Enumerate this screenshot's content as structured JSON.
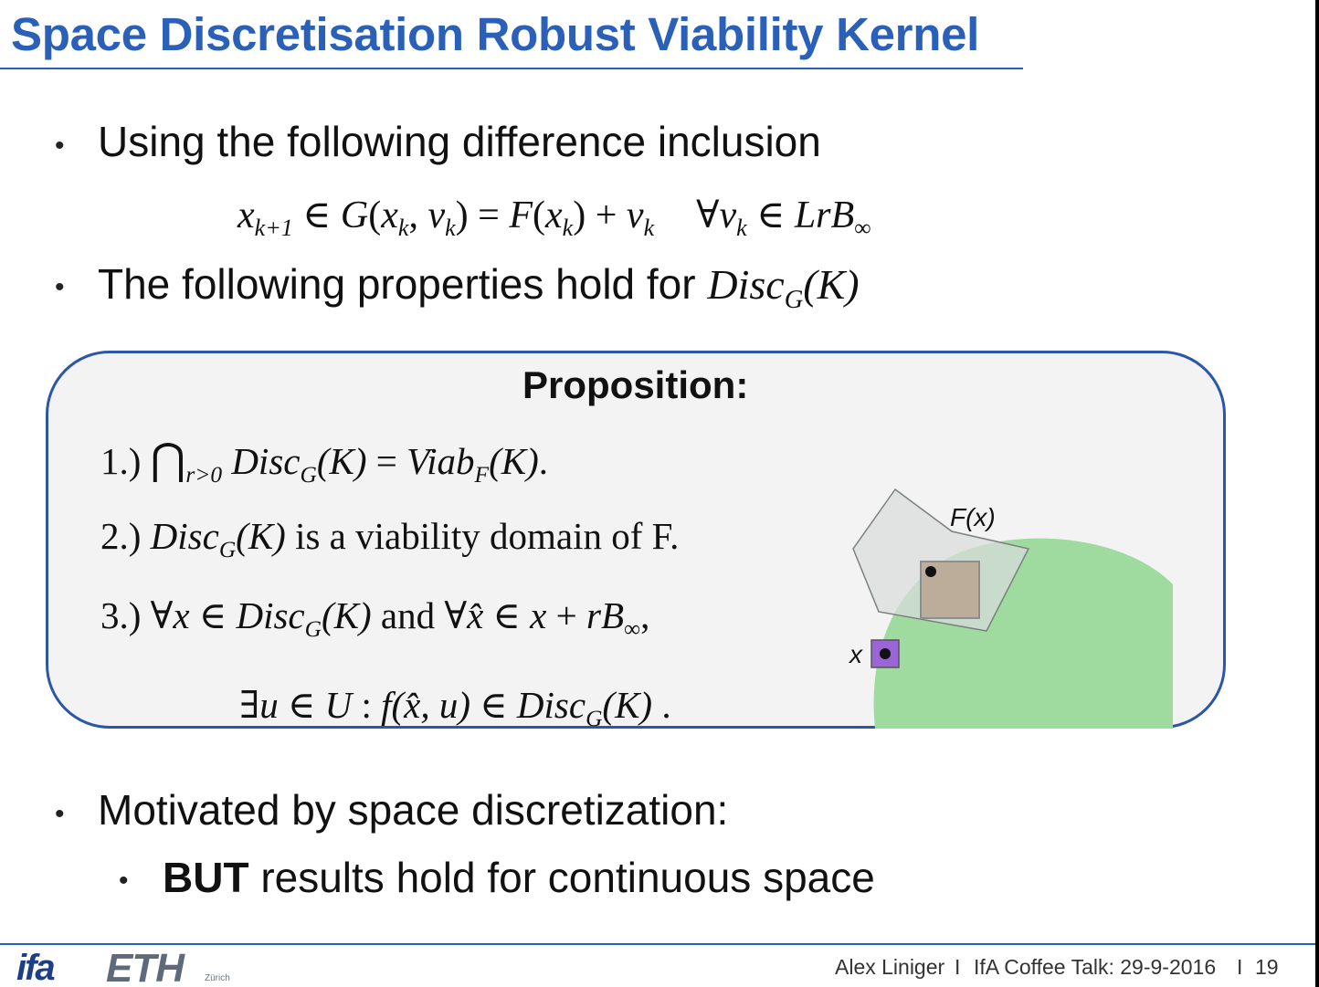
{
  "slide": {
    "title": "Space Discretisation Robust Viability Kernel",
    "bullets": {
      "b1": "Using the following difference inclusion",
      "b2_prefix": "The following properties hold for ",
      "b2_math": "Disc",
      "b2_sub": "G",
      "b2_arg": "(K)",
      "b3": "Motivated by space discretization:",
      "b4_bold": "BUT",
      "b4_rest": " results hold for continuous space",
      "bullet_glyph": "•"
    },
    "equation": {
      "x": "x",
      "x_sub": "k+1",
      "in1": " ∈ ",
      "G": "G",
      "open1": "(",
      "xk": "x",
      "k1": "k",
      "comma": ", ",
      "vk": "v",
      "k2": "k",
      "close1": ")",
      "eq": " = ",
      "F": "F",
      "open2": "(",
      "xk2": "x",
      "k3": "k",
      "close2": ")",
      "plus": " + ",
      "vk2": "v",
      "k4": "k",
      "forall": "∀",
      "vk3": "v",
      "k5": "k",
      "in2": " ∈ ",
      "LrB": "LrB",
      "inf": "∞"
    },
    "proposition": {
      "title": "Proposition:",
      "item1": {
        "num": "1.) ",
        "cap": "⋂",
        "cap_sub": "r>0",
        "disc": " Disc",
        "sub": "G",
        "arg": "(K)",
        "eq": " = ",
        "viab": "Viab",
        "viab_sub": "F",
        "viab_arg": "(K)",
        "end": "."
      },
      "item2": {
        "num": "2.) ",
        "disc": "Disc",
        "sub": "G",
        "arg": "(K)",
        "text": " is a viability domain of F."
      },
      "item3": {
        "num": "3.) ",
        "forall1": "∀",
        "x": "x",
        "in": " ∈ ",
        "disc": "Disc",
        "sub": "G",
        "arg": "(K)",
        "and": " and ",
        "forall2": "∀",
        "xhat": "x̂",
        "in2": " ∈ ",
        "x2": "x",
        "plus": " + ",
        "rB": "rB",
        "inf": "∞",
        "comma": ","
      },
      "item4": {
        "exists": "∃",
        "u": "u",
        "in": " ∈ ",
        "U": "U",
        "colon": " :  ",
        "f": "f",
        "args": "(x̂, u)",
        "in2": " ∈ ",
        "disc": "Disc",
        "sub": "G",
        "arg": "(K)",
        "end": " ."
      }
    },
    "illustration": {
      "fx_label": "F(x)",
      "x_label": "x",
      "colors": {
        "set_green": "#9fdb9f",
        "polygon_fill": "#d9dcdc",
        "polygon_stroke": "#7c7f80",
        "image_box": "#b9a490",
        "state_box": "#9a66d6"
      }
    },
    "footer": {
      "author": "Alex Liniger",
      "sep1": "I",
      "event": "IfA Coffee Talk: 29-9-2016",
      "sep2": "I",
      "page": "19",
      "logo_ifa": "ifa",
      "logo_eth": "ETH",
      "logo_zurich": "Zürich"
    }
  }
}
